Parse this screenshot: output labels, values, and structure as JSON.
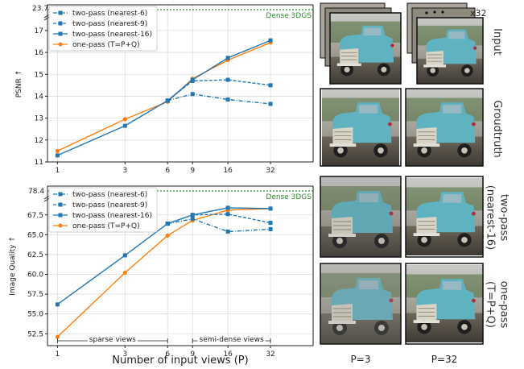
{
  "colors": {
    "blue": "#1f77b4",
    "orange": "#ff7f0e",
    "green": "#2a8a2a",
    "grid": "#dddddd",
    "truck_teal": "#5fb3c1"
  },
  "chart_data": [
    {
      "type": "line",
      "title": "",
      "xlabel": "",
      "ylabel": "PSNR ↑",
      "x": [
        1,
        3,
        6,
        9,
        16,
        32
      ],
      "x_ticks": [
        "1",
        "3",
        "6",
        "9",
        "16",
        "32"
      ],
      "x_scale": "log",
      "xlim": [
        0.85,
        64
      ],
      "ylim": [
        11,
        17.4
      ],
      "y_ticks": [
        "11",
        "12",
        "13",
        "14",
        "15",
        "16",
        "17"
      ],
      "y_break_label": "23.7",
      "grid": true,
      "legend_position": "top-left",
      "series": [
        {
          "name": "two-pass (nearest-6)",
          "style": "dashdot",
          "color": "blue",
          "values": [
            null,
            null,
            13.8,
            14.1,
            13.85,
            13.65
          ]
        },
        {
          "name": "two-pass (nearest-9)",
          "style": "dashed",
          "color": "blue",
          "values": [
            null,
            null,
            13.8,
            14.7,
            14.75,
            14.5
          ]
        },
        {
          "name": "two-pass (nearest-16)",
          "style": "solid",
          "color": "blue",
          "values": [
            11.3,
            12.65,
            13.8,
            14.75,
            15.75,
            16.55
          ]
        },
        {
          "name": "one-pass (T=P+Q)",
          "style": "solid",
          "color": "orange",
          "values": [
            11.5,
            12.95,
            13.75,
            14.8,
            15.65,
            16.45
          ]
        }
      ],
      "reference": {
        "label": "Dense 3DGS",
        "value": 23.7
      }
    },
    {
      "type": "line",
      "title": "",
      "xlabel": "Number of input views (P)",
      "ylabel": "Image Quality ↑",
      "x": [
        1,
        3,
        6,
        9,
        16,
        32
      ],
      "x_ticks": [
        "1",
        "3",
        "6",
        "9",
        "16",
        "32"
      ],
      "x_scale": "log",
      "xlim": [
        0.85,
        64
      ],
      "ylim": [
        51,
        69
      ],
      "y_ticks": [
        "52.5",
        "55.0",
        "57.5",
        "60.0",
        "62.5",
        "65.0",
        "67.5"
      ],
      "y_break_label": "78.4",
      "grid": true,
      "legend_position": "top-left",
      "series": [
        {
          "name": "two-pass (nearest-6)",
          "style": "dashdot",
          "color": "blue",
          "values": [
            null,
            null,
            66.4,
            67.0,
            65.4,
            65.7
          ]
        },
        {
          "name": "two-pass (nearest-9)",
          "style": "dashed",
          "color": "blue",
          "values": [
            null,
            null,
            66.4,
            67.5,
            67.6,
            66.5
          ]
        },
        {
          "name": "two-pass (nearest-16)",
          "style": "solid",
          "color": "blue",
          "values": [
            56.2,
            62.4,
            66.4,
            67.5,
            68.4,
            68.3
          ]
        },
        {
          "name": "one-pass (T=P+Q)",
          "style": "solid",
          "color": "orange",
          "values": [
            52.1,
            60.2,
            64.9,
            66.8,
            68.1,
            68.3
          ]
        }
      ],
      "reference": {
        "label": "Dense 3DGS",
        "value": 78.4
      },
      "regions": [
        {
          "label": "sparse views",
          "from": 1,
          "to": 6
        },
        {
          "label": "semi-dense views",
          "from": 9,
          "to": 32
        }
      ]
    }
  ],
  "gallery": {
    "row_labels": [
      "Input",
      "Groudtruth",
      "two-pass\n(nearest-16)",
      "one-pass\n(T=P+Q)"
    ],
    "col_labels": [
      "P=3",
      "P=32"
    ],
    "stack_count": "x32"
  }
}
